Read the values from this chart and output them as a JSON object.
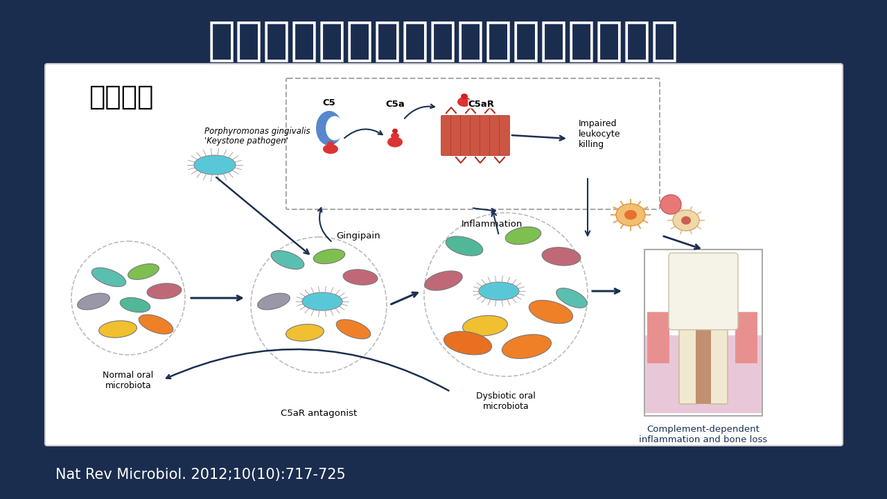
{
  "bg_color": "#1b2d4f",
  "title": "慢性牙周炎基石菌种：牙龈卟啉单胞菌",
  "title_color": "#ffffff",
  "title_fontsize": 48,
  "subtitle": "实验研究",
  "subtitle_fontsize": 28,
  "citation": "Nat Rev Microbiol. 2012;10(10):717-725",
  "citation_color": "#ffffff",
  "citation_fontsize": 15,
  "panel_bg": "#ffffff",
  "panel_border": "#cccccc",
  "arrow_color": "#1a3050",
  "dashed_box_color": "#aaaaaa",
  "labels": {
    "normal_oral": "Normal oral\nmicrobiota",
    "porphyro_line1": "Porphyromonas gingivalis",
    "porphyro_line2": "'Keystone pathogen'",
    "gingipain": "Gingipain",
    "C5": "C5",
    "C5a": "C5a",
    "C5aR": "C5aR",
    "inflammation": "Inflammation",
    "impaired": "Impaired\nleukocyte\nkilling",
    "dysbiotic": "Dysbiotic oral\nmicrobiota",
    "C5aR_ant": "C5aR antagonist",
    "complement": "Complement-dependent\ninflammation and bone loss"
  },
  "bacteria_colors": {
    "teal": "#5abfb0",
    "green": "#7dc050",
    "mauve": "#c06878",
    "gray": "#9898a8",
    "yellow": "#f0c030",
    "orange": "#f08028",
    "orange2": "#e87020",
    "teal2": "#50b898",
    "lightblue": "#78d0e8",
    "pink_light": "#e09898"
  },
  "pg_color": "#58c8d8"
}
